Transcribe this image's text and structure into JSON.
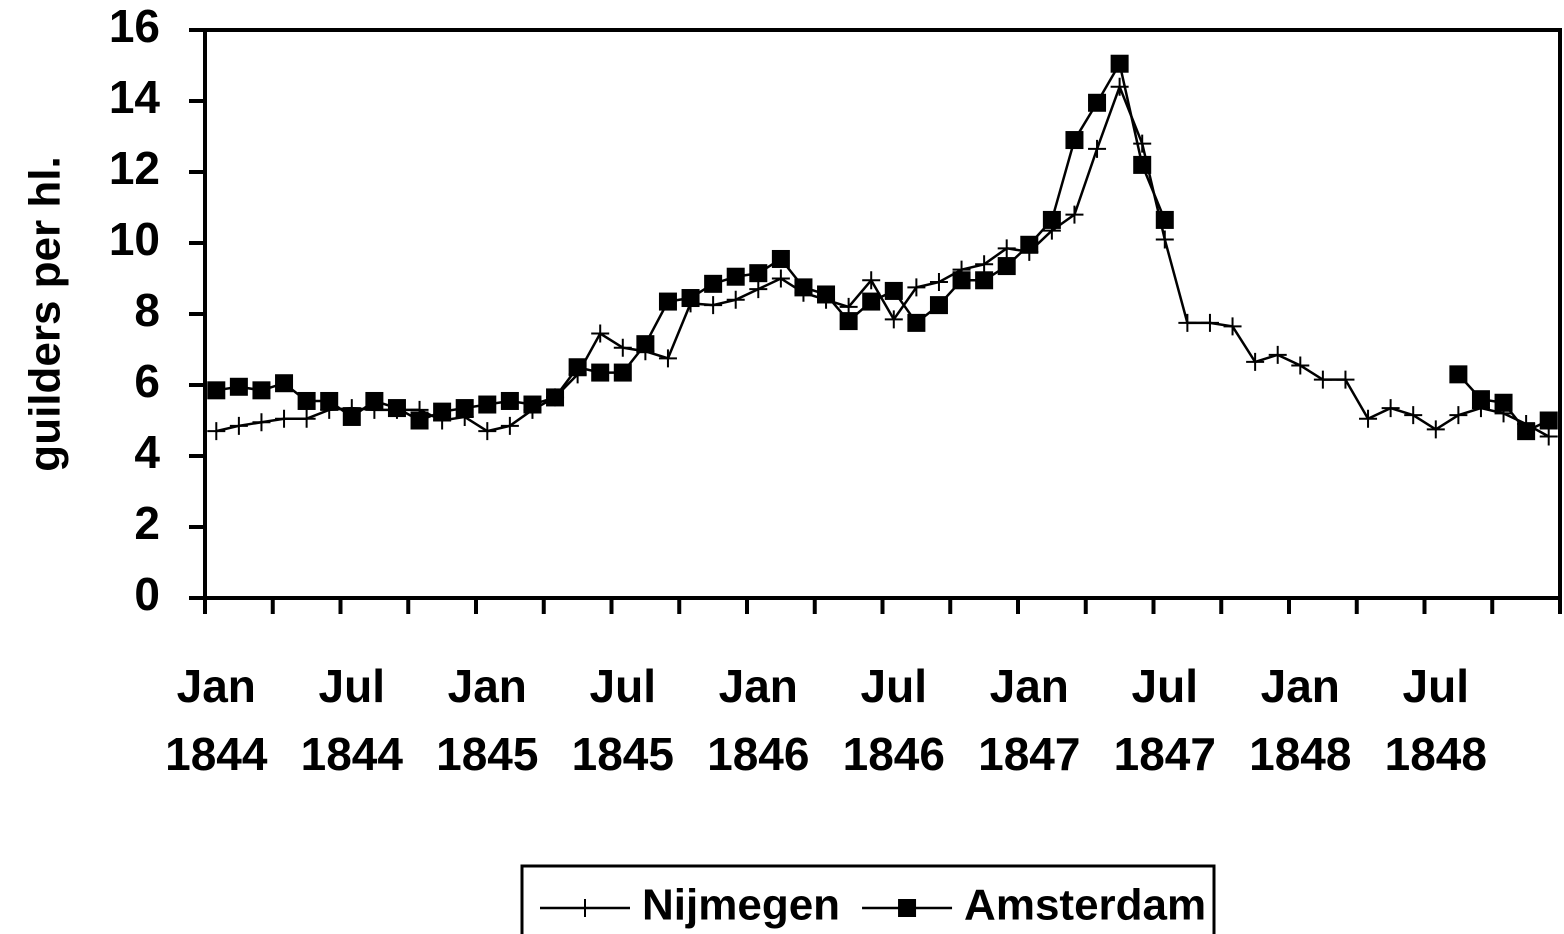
{
  "chart_data": {
    "type": "line",
    "y_label": "guilders per hl.",
    "categories": [
      "Jan 1844",
      null,
      null,
      null,
      null,
      null,
      "Jul 1844",
      null,
      null,
      null,
      null,
      null,
      "Jan 1845",
      null,
      null,
      null,
      null,
      null,
      "Jul 1845",
      null,
      null,
      null,
      null,
      null,
      "Jan 1846",
      null,
      null,
      null,
      null,
      null,
      "Jul 1846",
      null,
      null,
      null,
      null,
      null,
      "Jan 1847",
      null,
      null,
      null,
      null,
      null,
      "Jul 1847",
      null,
      null,
      null,
      null,
      null,
      "Jan 1848",
      null,
      null,
      null,
      null,
      null,
      "Jul 1848",
      null,
      null,
      null,
      null,
      null
    ],
    "series": [
      {
        "name": "Nijmegen",
        "color": "#000000",
        "marker": "plus",
        "values": [
          4.7,
          4.85,
          4.95,
          5.05,
          5.05,
          5.3,
          5.35,
          5.3,
          5.3,
          5.3,
          5.0,
          5.1,
          4.7,
          4.85,
          5.3,
          5.65,
          6.3,
          7.45,
          7.05,
          6.95,
          6.75,
          8.3,
          8.25,
          8.4,
          8.7,
          9.0,
          8.6,
          8.4,
          8.2,
          8.95,
          7.85,
          8.75,
          8.9,
          9.25,
          9.4,
          9.85,
          9.75,
          10.35,
          10.8,
          12.65,
          14.4,
          12.8,
          10.1,
          7.75,
          7.75,
          7.65,
          6.65,
          6.85,
          6.55,
          6.15,
          6.15,
          5.05,
          5.35,
          5.15,
          4.75,
          5.15,
          5.35,
          5.2,
          4.9,
          4.55
        ]
      },
      {
        "name": "Amsterdam",
        "color": "#000000",
        "marker": "square",
        "values": [
          5.85,
          5.95,
          5.85,
          6.05,
          5.55,
          5.55,
          5.1,
          5.55,
          5.35,
          5.0,
          5.25,
          5.35,
          5.45,
          5.55,
          5.45,
          5.65,
          6.5,
          6.35,
          6.35,
          7.15,
          8.35,
          8.45,
          8.85,
          9.05,
          9.15,
          9.55,
          8.75,
          8.55,
          7.8,
          8.35,
          8.65,
          7.75,
          8.25,
          8.95,
          8.95,
          9.35,
          9.95,
          10.65,
          12.9,
          13.95,
          15.05,
          12.2,
          10.65,
          null,
          null,
          null,
          null,
          null,
          null,
          null,
          null,
          null,
          null,
          null,
          null,
          6.3,
          5.6,
          5.5,
          4.7,
          5.0
        ]
      }
    ],
    "ylim": [
      0,
      16
    ],
    "yticks": [
      0,
      2,
      4,
      6,
      8,
      10,
      12,
      14,
      16
    ],
    "grid": false,
    "legend": "bottom"
  }
}
